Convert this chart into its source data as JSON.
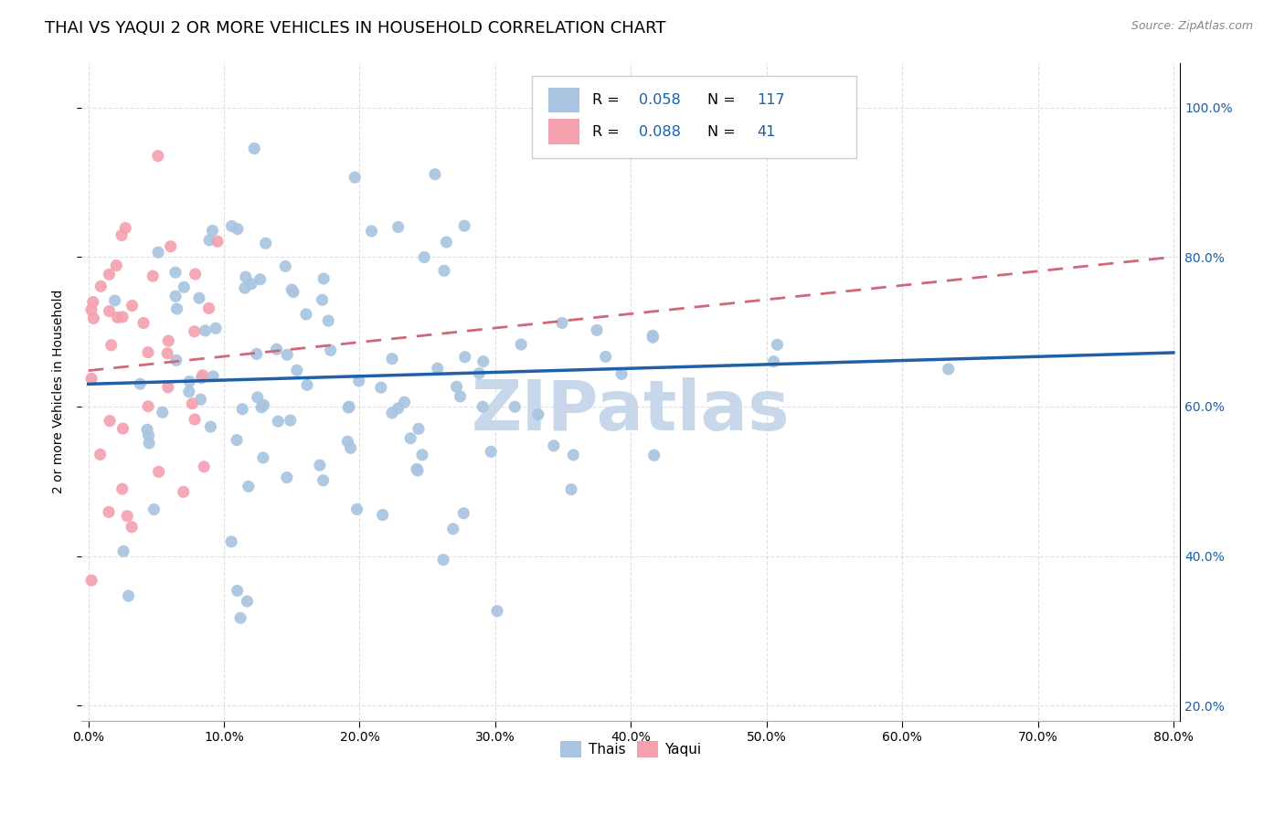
{
  "title": "THAI VS YAQUI 2 OR MORE VEHICLES IN HOUSEHOLD CORRELATION CHART",
  "source": "Source: ZipAtlas.com",
  "xlim": [
    -0.005,
    0.805
  ],
  "ylim": [
    0.18,
    1.06
  ],
  "x_tick_vals": [
    0.0,
    0.1,
    0.2,
    0.3,
    0.4,
    0.5,
    0.6,
    0.7,
    0.8
  ],
  "y_tick_vals": [
    0.2,
    0.4,
    0.6,
    0.8,
    1.0
  ],
  "thai_R": 0.058,
  "thai_N": 117,
  "yaqui_R": 0.088,
  "yaqui_N": 41,
  "thai_color": "#a8c4e0",
  "yaqui_color": "#f4a0ae",
  "thai_line_color": "#2060a8",
  "yaqui_line_color": "#d06878",
  "thai_line_y0": 0.63,
  "thai_line_y1": 0.672,
  "yaqui_line_y0": 0.648,
  "yaqui_line_y1": 0.8,
  "watermark": "ZIPatlas",
  "watermark_color": "#c8d8ea",
  "legend_label_thai": "Thais",
  "legend_label_yaqui": "Yaqui",
  "background_color": "#ffffff",
  "grid_color": "#cccccc",
  "title_fontsize": 13,
  "ylabel_fontsize": 10,
  "tick_fontsize": 10,
  "source_fontsize": 9,
  "thai_seed": 42,
  "yaqui_seed": 7
}
